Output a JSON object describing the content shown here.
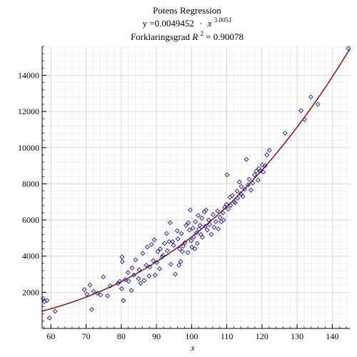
{
  "chart_data": {
    "type": "scatter",
    "title": "Potens Regression",
    "equation": {
      "lhs": "y =0.0049452",
      "dot": "·",
      "base": "x",
      "exponent": "3.0051"
    },
    "r2_label": {
      "prefix": "Forklaringsgrad ",
      "symbol": "R",
      "exponent": "2",
      "suffix": " = 0.90078"
    },
    "xlabel": "x",
    "ylabel": "",
    "xlim": [
      57.5,
      145
    ],
    "ylim": [
      0,
      15600
    ],
    "x_ticks": [
      60,
      70,
      80,
      90,
      100,
      110,
      120,
      130,
      140
    ],
    "y_ticks": [
      2000,
      4000,
      6000,
      8000,
      10000,
      12000,
      14000
    ],
    "grid": true,
    "colors": {
      "points": "#1a1a8c",
      "fit_curve": "#8b0000",
      "grid": "#cccccc"
    },
    "fit": {
      "coefficient": 0.0049452,
      "exponent": 3.0051
    },
    "series": [
      {
        "marker": "diamond",
        "points": [
          [
            57.8,
            1650
          ],
          [
            58.2,
            1480
          ],
          [
            58.9,
            1550
          ],
          [
            59.6,
            580
          ],
          [
            61.2,
            950
          ],
          [
            69.5,
            2150
          ],
          [
            70.2,
            1900
          ],
          [
            71.1,
            2400
          ],
          [
            71.6,
            1050
          ],
          [
            72.1,
            2050
          ],
          [
            73.2,
            1950
          ],
          [
            74.1,
            1850
          ],
          [
            74.9,
            2850
          ],
          [
            76.1,
            1800
          ],
          [
            76.9,
            2350
          ],
          [
            79.1,
            2500
          ],
          [
            79.6,
            2600
          ],
          [
            80.1,
            2200
          ],
          [
            80.2,
            3950
          ],
          [
            80.3,
            3700
          ],
          [
            80.6,
            1550
          ],
          [
            81.1,
            2700
          ],
          [
            81.9,
            3100
          ],
          [
            82.1,
            2600
          ],
          [
            82.9,
            2100
          ],
          [
            83.1,
            3350
          ],
          [
            83.6,
            2950
          ],
          [
            84.1,
            3800
          ],
          [
            84.9,
            2750
          ],
          [
            85.1,
            3250
          ],
          [
            85.5,
            2500
          ],
          [
            86.1,
            4150
          ],
          [
            86.5,
            2650
          ],
          [
            87.1,
            3500
          ],
          [
            87.4,
            4500
          ],
          [
            87.9,
            2900
          ],
          [
            88.1,
            3400
          ],
          [
            88.6,
            4650
          ],
          [
            89.1,
            3750
          ],
          [
            89.4,
            4900
          ],
          [
            89.6,
            2950
          ],
          [
            90.1,
            3650
          ],
          [
            90.4,
            4250
          ],
          [
            90.9,
            3300
          ],
          [
            91.1,
            4400
          ],
          [
            91.6,
            3950
          ],
          [
            91.9,
            4050
          ],
          [
            92.3,
            4700
          ],
          [
            92.9,
            5250
          ],
          [
            93.1,
            4300
          ],
          [
            93.6,
            4800
          ],
          [
            93.9,
            5850
          ],
          [
            94.1,
            3550
          ],
          [
            94.6,
            4800
          ],
          [
            94.9,
            4600
          ],
          [
            95.4,
            3000
          ],
          [
            95.9,
            5400
          ],
          [
            96.1,
            4950
          ],
          [
            96.4,
            3500
          ],
          [
            96.6,
            4400
          ],
          [
            96.9,
            3700
          ],
          [
            97.1,
            5250
          ],
          [
            97.4,
            4250
          ],
          [
            97.6,
            4550
          ],
          [
            98.1,
            4750
          ],
          [
            98.4,
            5700
          ],
          [
            98.9,
            4200
          ],
          [
            99.1,
            5850
          ],
          [
            99.4,
            5450
          ],
          [
            99.6,
            6550
          ],
          [
            99.9,
            4850
          ],
          [
            100.1,
            4500
          ],
          [
            100.4,
            5550
          ],
          [
            100.6,
            5050
          ],
          [
            100.9,
            4400
          ],
          [
            101.1,
            5900
          ],
          [
            101.4,
            5300
          ],
          [
            101.6,
            4700
          ],
          [
            101.9,
            6250
          ],
          [
            102.1,
            5500
          ],
          [
            102.4,
            5700
          ],
          [
            102.6,
            5200
          ],
          [
            102.9,
            6100
          ],
          [
            103.1,
            5050
          ],
          [
            103.6,
            6450
          ],
          [
            103.9,
            5650
          ],
          [
            104.1,
            6550
          ],
          [
            104.4,
            5450
          ],
          [
            104.9,
            6000
          ],
          [
            105.1,
            5750
          ],
          [
            105.6,
            5200
          ],
          [
            106.1,
            6300
          ],
          [
            106.4,
            5600
          ],
          [
            106.9,
            5900
          ],
          [
            107.4,
            6500
          ],
          [
            107.6,
            5500
          ],
          [
            108.1,
            6150
          ],
          [
            108.4,
            5900
          ],
          [
            108.9,
            6400
          ],
          [
            109.1,
            6000
          ],
          [
            109.4,
            6700
          ],
          [
            109.9,
            6850
          ],
          [
            110.1,
            8500
          ],
          [
            110.4,
            6600
          ],
          [
            110.9,
            7250
          ],
          [
            111.1,
            6800
          ],
          [
            111.6,
            7350
          ],
          [
            112.1,
            7000
          ],
          [
            112.4,
            6950
          ],
          [
            112.9,
            7600
          ],
          [
            113.1,
            7200
          ],
          [
            113.6,
            8100
          ],
          [
            113.9,
            7450
          ],
          [
            114.1,
            7850
          ],
          [
            114.6,
            7300
          ],
          [
            115.1,
            7700
          ],
          [
            115.6,
            9350
          ],
          [
            116.1,
            7950
          ],
          [
            116.4,
            8250
          ],
          [
            116.9,
            7650
          ],
          [
            117.4,
            8050
          ],
          [
            117.9,
            8500
          ],
          [
            118.4,
            8700
          ],
          [
            118.9,
            8200
          ],
          [
            119.1,
            8850
          ],
          [
            119.6,
            8700
          ],
          [
            120.1,
            9050
          ],
          [
            120.4,
            8650
          ],
          [
            120.9,
            9000
          ],
          [
            121.4,
            9600
          ],
          [
            122.1,
            9850
          ],
          [
            126.6,
            10800
          ],
          [
            131.1,
            12050
          ],
          [
            132.1,
            11550
          ],
          [
            133.9,
            12800
          ],
          [
            135.9,
            12400
          ],
          [
            144.6,
            15500
          ]
        ]
      }
    ]
  }
}
